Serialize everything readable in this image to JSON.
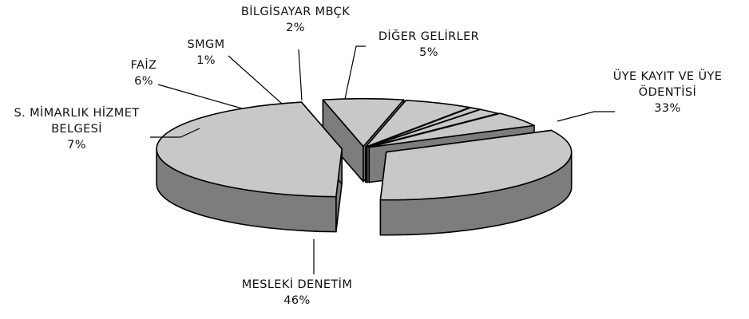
{
  "chart_data": {
    "type": "pie",
    "style": "3d-exploded",
    "categories": [
      "ÜYE KAYIT VE ÜYE ÖDENTİSİ",
      "MESLEKİ DENETİM",
      "S. MİMARLIK HİZMET BELGESİ",
      "FAİZ",
      "SMGM",
      "BİLGİSAYAR MBÇK",
      "DİĞER GELİRLER"
    ],
    "values": [
      33,
      46,
      7,
      6,
      1,
      2,
      5
    ],
    "unit": "%",
    "labels": [
      {
        "lines": [
          "ÜYE KAYIT VE ÜYE",
          "ÖDENTİSİ"
        ],
        "value_text": "33%"
      },
      {
        "lines": [
          "MESLEKİ DENETİM"
        ],
        "value_text": "46%"
      },
      {
        "lines": [
          "S. MİMARLIK HİZMET",
          "BELGESİ"
        ],
        "value_text": "7%"
      },
      {
        "lines": [
          "FAİZ"
        ],
        "value_text": "6%"
      },
      {
        "lines": [
          "SMGM"
        ],
        "value_text": "1%"
      },
      {
        "lines": [
          "BİLGİSAYAR MBÇK"
        ],
        "value_text": "2%"
      },
      {
        "lines": [
          "DİĞER GELİRLER"
        ],
        "value_text": "5%"
      }
    ],
    "colors": {
      "top": "#c8c8c8",
      "side": "#7d7d7d",
      "outline": "#000000",
      "text": "#111111"
    }
  }
}
